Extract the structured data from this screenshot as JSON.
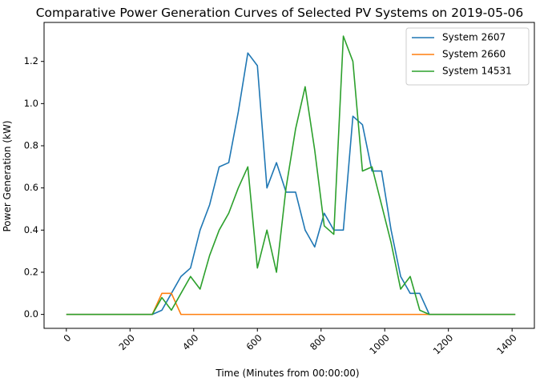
{
  "chart_data": {
    "type": "line",
    "title": "Comparative Power Generation Curves of Selected PV Systems on 2019-05-06",
    "xlabel": "Time (Minutes from 00:00:00)",
    "ylabel": "Power Generation (kW)",
    "xlim": [
      -70,
      1470
    ],
    "ylim": [
      -0.066,
      1.385
    ],
    "xticks": [
      0,
      200,
      400,
      600,
      800,
      1000,
      1200,
      1400
    ],
    "yticks": [
      0.0,
      0.2,
      0.4,
      0.6,
      0.8,
      1.0,
      1.2
    ],
    "ytick_labels": [
      "0.0",
      "0.2",
      "0.4",
      "0.6",
      "0.8",
      "1.0",
      "1.2"
    ],
    "grid": false,
    "legend_position": "top-right",
    "series": [
      {
        "name": "System 2607",
        "color": "#1f77b4",
        "x": [
          0,
          270,
          300,
          330,
          360,
          390,
          420,
          450,
          480,
          510,
          540,
          570,
          600,
          630,
          660,
          690,
          720,
          750,
          780,
          810,
          840,
          870,
          900,
          930,
          960,
          990,
          1020,
          1050,
          1080,
          1110,
          1140,
          1410
        ],
        "y": [
          0,
          0,
          0.02,
          0.1,
          0.18,
          0.22,
          0.4,
          0.52,
          0.7,
          0.72,
          0.96,
          1.24,
          1.18,
          0.6,
          0.72,
          0.58,
          0.58,
          0.4,
          0.32,
          0.48,
          0.4,
          0.4,
          0.94,
          0.9,
          0.68,
          0.68,
          0.4,
          0.18,
          0.1,
          0.1,
          0,
          0
        ]
      },
      {
        "name": "System 2660",
        "color": "#ff7f0e",
        "x": [
          0,
          270,
          300,
          330,
          360,
          1410
        ],
        "y": [
          0,
          0,
          0.1,
          0.1,
          0,
          0
        ]
      },
      {
        "name": "System 14531",
        "color": "#2ca02c",
        "x": [
          0,
          270,
          300,
          330,
          360,
          390,
          420,
          450,
          480,
          510,
          540,
          570,
          600,
          630,
          660,
          690,
          720,
          750,
          780,
          810,
          840,
          870,
          900,
          930,
          960,
          990,
          1020,
          1050,
          1080,
          1110,
          1140,
          1410
        ],
        "y": [
          0,
          0,
          0.08,
          0.02,
          0.1,
          0.18,
          0.12,
          0.28,
          0.4,
          0.48,
          0.6,
          0.7,
          0.22,
          0.4,
          0.2,
          0.6,
          0.88,
          1.08,
          0.78,
          0.42,
          0.38,
          1.32,
          1.2,
          0.68,
          0.7,
          0.52,
          0.34,
          0.12,
          0.18,
          0.02,
          0,
          0
        ]
      }
    ]
  }
}
